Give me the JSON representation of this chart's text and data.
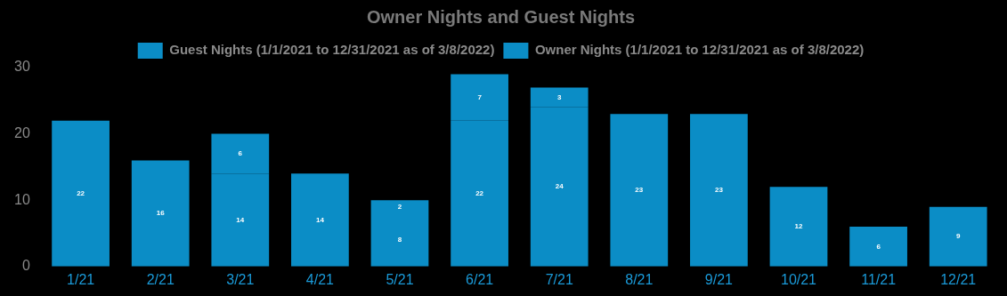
{
  "chart_data": {
    "type": "bar",
    "title": "Owner Nights and Guest Nights",
    "categories": [
      "1/21",
      "2/21",
      "3/21",
      "4/21",
      "5/21",
      "6/21",
      "7/21",
      "8/21",
      "9/21",
      "10/21",
      "11/21",
      "12/21"
    ],
    "series": [
      {
        "name": "Guest Nights (1/1/2021 to 12/31/2021 as of 3/8/2022)",
        "color": "#0b8dc6",
        "values": [
          22,
          16,
          14,
          14,
          8,
          22,
          24,
          23,
          23,
          12,
          6,
          9
        ]
      },
      {
        "name": "Owner Nights (1/1/2021 to 12/31/2021 as of 3/8/2022)",
        "color": "#0b8dc6",
        "values": [
          null,
          null,
          6,
          null,
          2,
          7,
          3,
          null,
          null,
          null,
          null,
          null
        ]
      }
    ],
    "stacked": true,
    "ylim": [
      0,
      30
    ],
    "yticks": [
      0,
      10,
      20,
      30
    ],
    "grid": false,
    "legend": "top",
    "data_labels": true
  }
}
